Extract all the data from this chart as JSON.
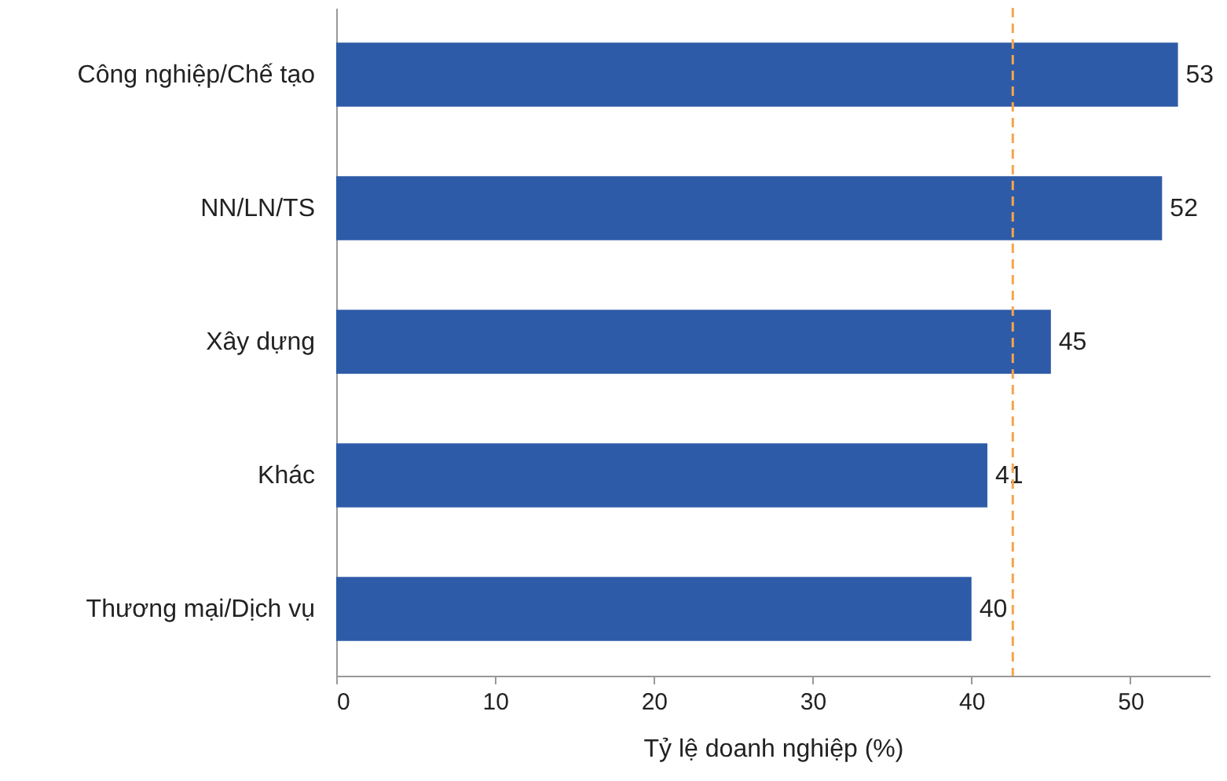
{
  "chart_data": {
    "type": "bar",
    "orientation": "horizontal",
    "xlabel": "Tỷ lệ doanh nghiệp (%)",
    "categories": [
      "Công nghiệp/Chế tạo",
      "NN/LN/TS",
      "Xây dựng",
      "Khác",
      "Thương mại/Dịch vụ"
    ],
    "series": [
      {
        "color": "#2e5ba8",
        "values": [
          53,
          52,
          45,
          41,
          40
        ]
      }
    ],
    "xlim": [
      0,
      55
    ],
    "xticks": [
      0,
      10,
      20,
      30,
      40,
      50
    ],
    "data_labels": true,
    "ref_lines": [
      {
        "axis": "x",
        "value": 42.6,
        "color": "#f4a54c",
        "line_style": "dashed"
      }
    ]
  }
}
